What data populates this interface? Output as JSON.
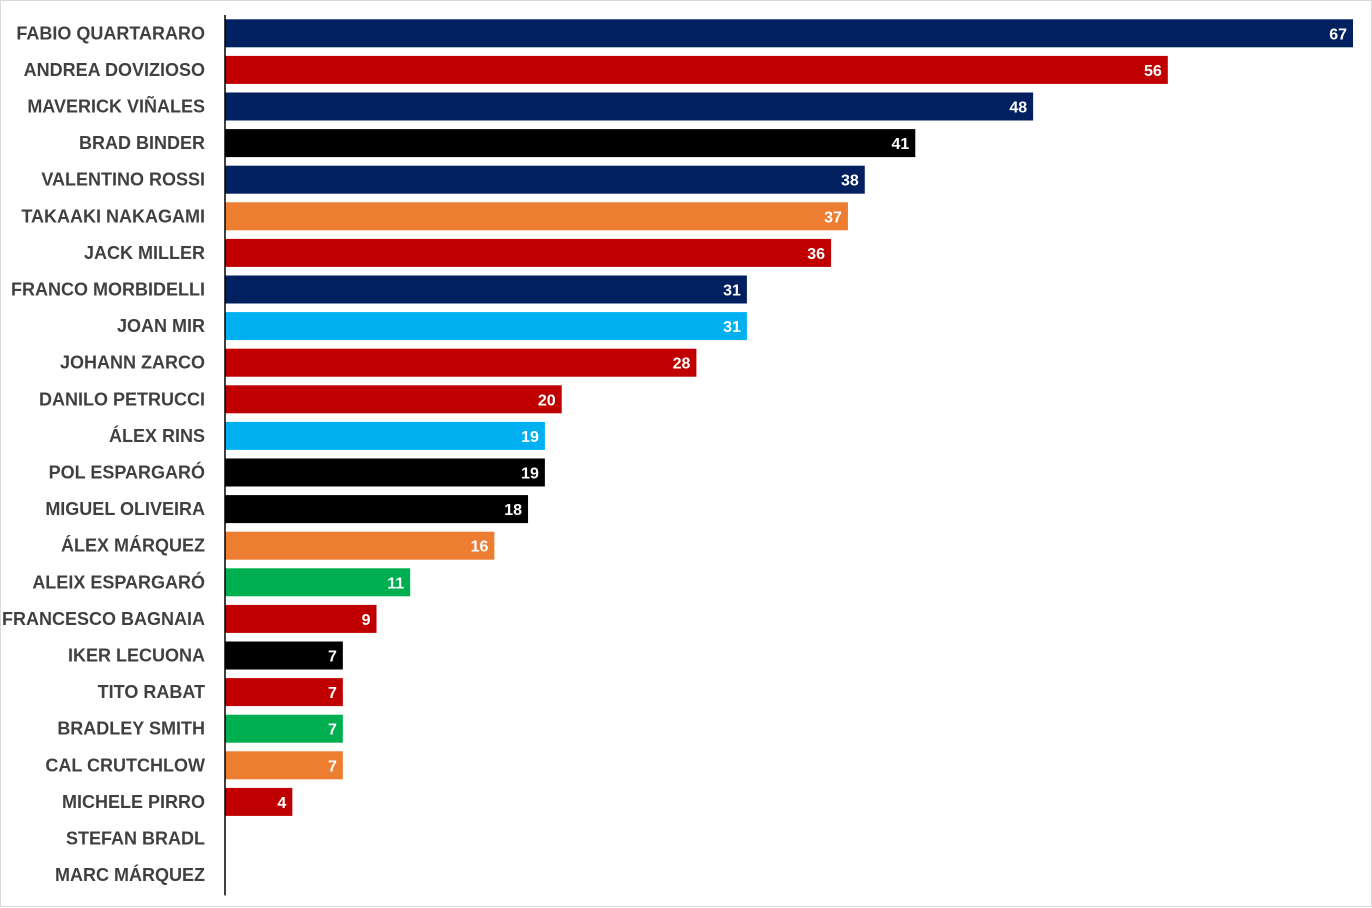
{
  "chart_data": {
    "type": "bar",
    "orientation": "horizontal",
    "title": "",
    "xlabel": "",
    "ylabel": "",
    "xlim": [
      0,
      67
    ],
    "grid": false,
    "legend": "none",
    "data_labels": true,
    "categories": [
      "FABIO QUARTARARO",
      "ANDREA DOVIZIOSO",
      "MAVERICK VIÑALES",
      "BRAD BINDER",
      "VALENTINO ROSSI",
      "TAKAAKI NAKAGAMI",
      "JACK MILLER",
      "FRANCO MORBIDELLI",
      "JOAN MIR",
      "JOHANN ZARCO",
      "DANILO PETRUCCI",
      "ÁLEX RINS",
      "POL ESPARGARÓ",
      "MIGUEL OLIVEIRA",
      "ÁLEX MÁRQUEZ",
      "ALEIX ESPARGARÓ",
      "FRANCESCO BAGNAIA",
      "IKER LECUONA",
      "TITO RABAT",
      "BRADLEY SMITH",
      "CAL CRUTCHLOW",
      "MICHELE PIRRO",
      "STEFAN BRADL",
      "MARC MÁRQUEZ"
    ],
    "values": [
      67,
      56,
      48,
      41,
      38,
      37,
      36,
      31,
      31,
      28,
      20,
      19,
      19,
      18,
      16,
      11,
      9,
      7,
      7,
      7,
      7,
      4,
      0,
      0
    ],
    "value_labels": [
      "67",
      "56",
      "48",
      "41",
      "38",
      "37",
      "36",
      "31",
      "31",
      "28",
      "20",
      "19",
      "19",
      "18",
      "16",
      "11",
      "9",
      "7",
      "7",
      "7",
      "7",
      "4",
      "",
      ""
    ],
    "bar_colors": [
      "#002060",
      "#C00000",
      "#002060",
      "#000000",
      "#002060",
      "#ED7D31",
      "#C00000",
      "#002060",
      "#00B0F0",
      "#C00000",
      "#C00000",
      "#00B0F0",
      "#000000",
      "#000000",
      "#ED7D31",
      "#00B050",
      "#C00000",
      "#000000",
      "#C00000",
      "#00B050",
      "#ED7D31",
      "#C00000",
      "#C00000",
      "#C00000"
    ],
    "axis_color": "#000000",
    "label_color": "#404040",
    "value_label_color": "#FFFFFF"
  }
}
